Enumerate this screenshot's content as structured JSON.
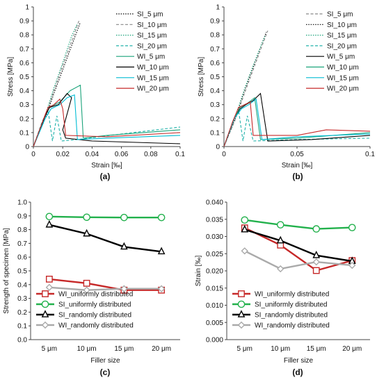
{
  "chart_data": [
    {
      "panel_label": "(a)",
      "type": "line",
      "xlabel": "Strain [‰]",
      "ylabel": "Stress [MPa]",
      "xlim": [
        0,
        0.1
      ],
      "ylim": [
        0,
        1
      ],
      "x_ticks": [
        "0",
        "0.02",
        "0.04",
        "0.06",
        "0.08",
        "0.1"
      ],
      "y_ticks": [
        "0",
        "0.1",
        "0.2",
        "0.3",
        "0.4",
        "0.5",
        "0.6",
        "0.7",
        "0.8",
        "0.9",
        "1"
      ],
      "legend_position": "top-right",
      "series": [
        {
          "name": "SI_5 μm",
          "color": "#000000",
          "style": "dotted",
          "x": [
            0,
            0.008,
            0.014,
            0.02,
            0.027,
            0.032
          ],
          "y": [
            0,
            0.2,
            0.38,
            0.55,
            0.75,
            0.89
          ]
        },
        {
          "name": "SI_10 μm",
          "color": "#888888",
          "style": "dashed",
          "x": [
            0,
            0.008,
            0.014,
            0.02,
            0.027,
            0.031
          ],
          "y": [
            0,
            0.21,
            0.4,
            0.58,
            0.78,
            0.9
          ]
        },
        {
          "name": "SI_15 μm",
          "color": "#1aa37a",
          "style": "dotted",
          "x": [
            0,
            0.008,
            0.014,
            0.02,
            0.026,
            0.03
          ],
          "y": [
            0,
            0.22,
            0.42,
            0.6,
            0.79,
            0.88
          ]
        },
        {
          "name": "SI_20 μm",
          "color": "#20b2aa",
          "style": "dashed",
          "x": [
            0,
            0.006,
            0.01,
            0.013,
            0.016,
            0.019,
            0.03,
            0.06,
            0.1
          ],
          "y": [
            0,
            0.18,
            0.26,
            0.04,
            0.22,
            0.04,
            0.05,
            0.09,
            0.14
          ]
        },
        {
          "name": "WI_5 μm",
          "color": "#1aa37a",
          "style": "solid",
          "x": [
            0,
            0.008,
            0.011,
            0.018,
            0.025,
            0.032,
            0.034,
            0.05,
            0.1
          ],
          "y": [
            0,
            0.22,
            0.28,
            0.32,
            0.4,
            0.44,
            0.06,
            0.08,
            0.12
          ]
        },
        {
          "name": "WI_10 μm",
          "color": "#000000",
          "style": "solid",
          "x": [
            0,
            0.008,
            0.011,
            0.017,
            0.023,
            0.026,
            0.02,
            0.022,
            0.04,
            0.1
          ],
          "y": [
            0,
            0.22,
            0.28,
            0.3,
            0.38,
            0.35,
            0.12,
            0.06,
            0.04,
            0.02
          ]
        },
        {
          "name": "WI_15 μm",
          "color": "#00bcd4",
          "style": "solid",
          "x": [
            0,
            0.008,
            0.012,
            0.018,
            0.023,
            0.028,
            0.03,
            0.05,
            0.1
          ],
          "y": [
            0,
            0.2,
            0.27,
            0.3,
            0.35,
            0.37,
            0.05,
            0.06,
            0.08
          ]
        },
        {
          "name": "WI_20 μm",
          "color": "#c62828",
          "style": "solid",
          "x": [
            0,
            0.007,
            0.01,
            0.014,
            0.018,
            0.02,
            0.022,
            0.05,
            0.1
          ],
          "y": [
            0,
            0.2,
            0.28,
            0.3,
            0.34,
            0.27,
            0.08,
            0.07,
            0.1
          ]
        }
      ]
    },
    {
      "panel_label": "(b)",
      "type": "line",
      "xlabel": "Strain [‰]",
      "ylabel": "Stress [MPa]",
      "xlim": [
        0,
        0.1
      ],
      "ylim": [
        0,
        1
      ],
      "x_ticks": [
        "0",
        "0.05",
        "0.1"
      ],
      "y_ticks": [
        "0",
        "0.1",
        "0.2",
        "0.3",
        "0.4",
        "0.5",
        "0.6",
        "0.7",
        "0.8",
        "0.9",
        "1"
      ],
      "legend_position": "top-right",
      "series": [
        {
          "name": "SI_5 μm",
          "color": "#888888",
          "style": "dashed",
          "x": [
            0,
            0.008,
            0.014,
            0.02,
            0.026,
            0.03
          ],
          "y": [
            0,
            0.2,
            0.38,
            0.55,
            0.72,
            0.83
          ]
        },
        {
          "name": "SI_10 μm",
          "color": "#000000",
          "style": "dotted",
          "x": [
            0,
            0.008,
            0.014,
            0.02,
            0.026,
            0.029
          ],
          "y": [
            0,
            0.21,
            0.4,
            0.57,
            0.74,
            0.82
          ]
        },
        {
          "name": "SI_15 μm",
          "color": "#1aa37a",
          "style": "dotted",
          "x": [
            0,
            0.008,
            0.014,
            0.02,
            0.026,
            0.028
          ],
          "y": [
            0,
            0.22,
            0.41,
            0.58,
            0.74,
            0.79
          ]
        },
        {
          "name": "SI_20 μm",
          "color": "#20b2aa",
          "style": "dashed",
          "x": [
            0,
            0.006,
            0.01,
            0.013,
            0.016,
            0.02,
            0.05,
            0.1
          ],
          "y": [
            0,
            0.18,
            0.26,
            0.04,
            0.22,
            0.04,
            0.05,
            0.06
          ]
        },
        {
          "name": "WI_5 μm",
          "color": "#000000",
          "style": "solid",
          "x": [
            0,
            0.007,
            0.011,
            0.015,
            0.02,
            0.025,
            0.03,
            0.06,
            0.1
          ],
          "y": [
            0,
            0.2,
            0.27,
            0.3,
            0.33,
            0.38,
            0.04,
            0.05,
            0.08
          ]
        },
        {
          "name": "WI_10 μm",
          "color": "#1aa37a",
          "style": "solid",
          "x": [
            0,
            0.007,
            0.011,
            0.016,
            0.021,
            0.025,
            0.05,
            0.1
          ],
          "y": [
            0,
            0.2,
            0.28,
            0.31,
            0.35,
            0.05,
            0.06,
            0.1
          ]
        },
        {
          "name": "WI_15 μm",
          "color": "#00bcd4",
          "style": "solid",
          "x": [
            0,
            0.007,
            0.012,
            0.017,
            0.022,
            0.026,
            0.05,
            0.1
          ],
          "y": [
            0,
            0.2,
            0.27,
            0.3,
            0.34,
            0.05,
            0.07,
            0.09
          ]
        },
        {
          "name": "WI_20 μm",
          "color": "#c62828",
          "style": "solid",
          "x": [
            0,
            0.006,
            0.01,
            0.014,
            0.018,
            0.02,
            0.05,
            0.07,
            0.1
          ],
          "y": [
            0,
            0.18,
            0.28,
            0.3,
            0.32,
            0.08,
            0.08,
            0.12,
            0.11
          ]
        }
      ]
    },
    {
      "panel_label": "(c)",
      "type": "line",
      "xlabel": "Filler size",
      "ylabel": "Strength of specimen [MPa]",
      "categories": [
        "5 μm",
        "10 μm",
        "15 μm",
        "20 μm"
      ],
      "ylim": [
        0,
        1
      ],
      "y_ticks": [
        "0.0",
        "0.1",
        "0.2",
        "0.3",
        "0.4",
        "0.5",
        "0.6",
        "0.7",
        "0.8",
        "0.9",
        "1.0"
      ],
      "legend_position": "bottom-left",
      "series": [
        {
          "name": "WI_uniformly distributed",
          "color": "#c62828",
          "marker": "square",
          "values": [
            0.44,
            0.41,
            0.36,
            0.36
          ]
        },
        {
          "name": "SI_uniformly distributed",
          "color": "#22b14c",
          "marker": "circle",
          "values": [
            0.895,
            0.89,
            0.888,
            0.888
          ]
        },
        {
          "name": "SI_randomly distributed",
          "color": "#000000",
          "marker": "triangle",
          "values": [
            0.835,
            0.77,
            0.675,
            0.64
          ]
        },
        {
          "name": "WI_randomly distributed",
          "color": "#aaaaaa",
          "marker": "diamond",
          "values": [
            0.38,
            0.36,
            0.37,
            0.37
          ]
        }
      ]
    },
    {
      "panel_label": "(d)",
      "type": "line",
      "xlabel": "Filler size",
      "ylabel": "Strain [‰]",
      "categories": [
        "5 μm",
        "10 μm",
        "15 μm",
        "20 μm"
      ],
      "ylim": [
        0,
        0.04
      ],
      "y_ticks": [
        "0.000",
        "0.005",
        "0.010",
        "0.015",
        "0.020",
        "0.025",
        "0.030",
        "0.035",
        "0.040"
      ],
      "legend_position": "bottom-left",
      "series": [
        {
          "name": "WI_uniformly distributed",
          "color": "#c62828",
          "marker": "square",
          "values": [
            0.0325,
            0.0275,
            0.0201,
            0.023
          ]
        },
        {
          "name": "SI_uniformly distributed",
          "color": "#22b14c",
          "marker": "circle",
          "values": [
            0.0348,
            0.0334,
            0.0322,
            0.0326
          ]
        },
        {
          "name": "SI_randomly distributed",
          "color": "#000000",
          "marker": "triangle",
          "values": [
            0.032,
            0.0288,
            0.0245,
            0.0228
          ]
        },
        {
          "name": "WI_randomly distributed",
          "color": "#aaaaaa",
          "marker": "diamond",
          "values": [
            0.0258,
            0.0206,
            0.0226,
            0.0216
          ]
        }
      ]
    }
  ]
}
